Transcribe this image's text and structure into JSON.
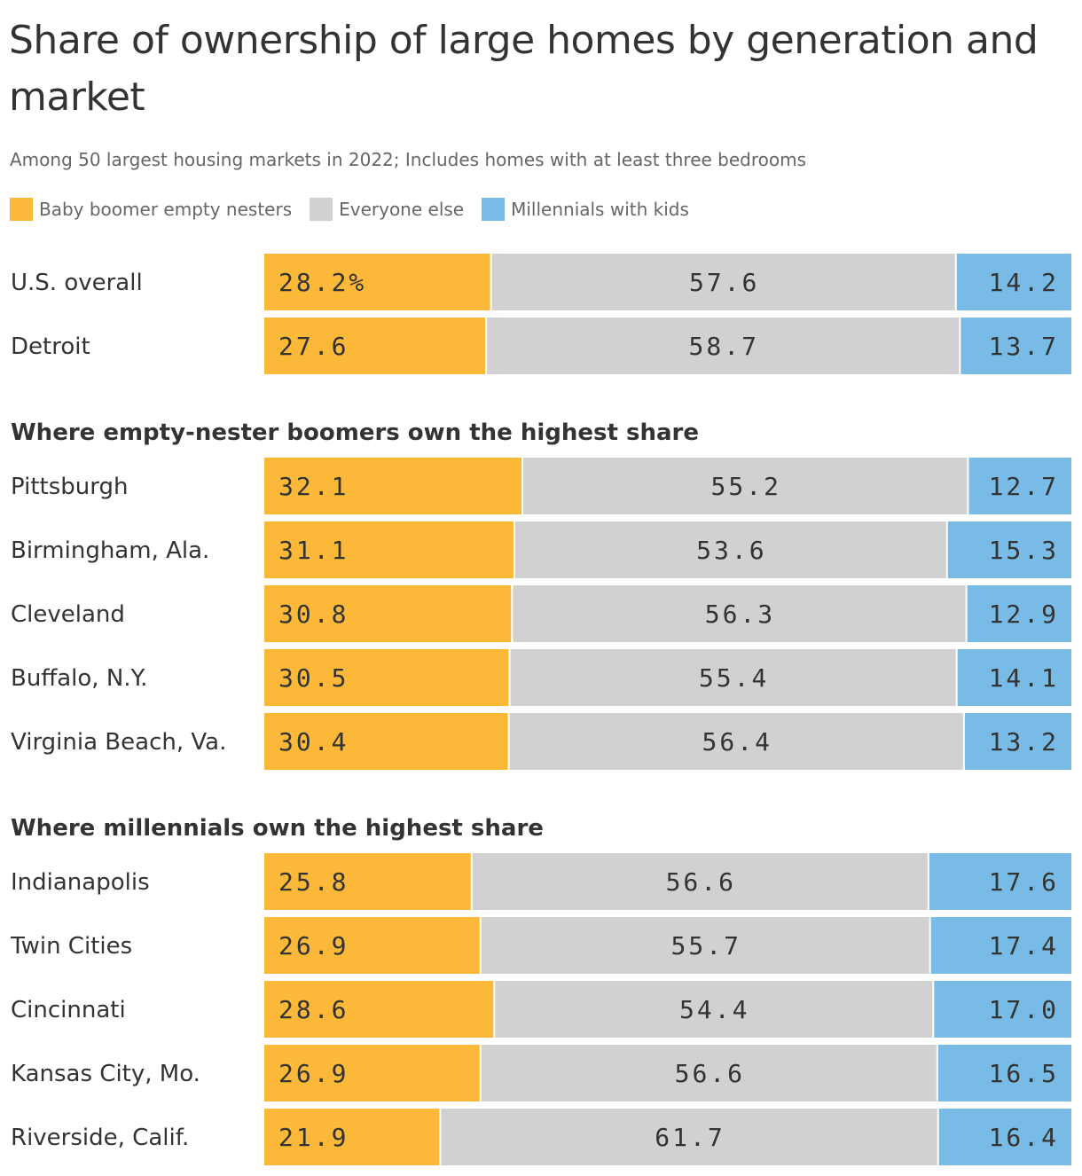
{
  "title": "Share of ownership of large homes by generation and market",
  "subtitle": "Among 50 largest housing markets in 2022; Includes homes with at least three bedrooms",
  "legend": [
    {
      "label": "Baby boomer empty nesters",
      "color": "#fcb939"
    },
    {
      "label": "Everyone else",
      "color": "#d0d1d0"
    },
    {
      "label": "Millennials with kids",
      "color": "#78bbe6"
    }
  ],
  "chart_data": {
    "type": "bar",
    "stacked": true,
    "orientation": "horizontal",
    "value_suffix_first": "%",
    "series_names": [
      "Baby boomer empty nesters",
      "Everyone else",
      "Millennials with kids"
    ],
    "colors": [
      "#fcb939",
      "#d0d1d0",
      "#78bbe6"
    ],
    "xlim": [
      0,
      100
    ],
    "groups": [
      {
        "label": "",
        "rows": [
          {
            "label": "U.S. overall",
            "values": [
              28.2,
              57.6,
              14.2
            ]
          },
          {
            "label": "Detroit",
            "values": [
              27.6,
              58.7,
              13.7
            ]
          }
        ]
      },
      {
        "label": "Where empty-nester boomers own the highest share",
        "rows": [
          {
            "label": "Pittsburgh",
            "values": [
              32.1,
              55.2,
              12.7
            ]
          },
          {
            "label": "Birmingham, Ala.",
            "values": [
              31.1,
              53.6,
              15.3
            ]
          },
          {
            "label": "Cleveland",
            "values": [
              30.8,
              56.3,
              12.9
            ]
          },
          {
            "label": "Buffalo, N.Y.",
            "values": [
              30.5,
              55.4,
              14.1
            ]
          },
          {
            "label": "Virginia Beach, Va.",
            "values": [
              30.4,
              56.4,
              13.2
            ]
          }
        ]
      },
      {
        "label": "Where millennials own the highest share",
        "rows": [
          {
            "label": "Indianapolis",
            "values": [
              25.8,
              56.6,
              17.6
            ]
          },
          {
            "label": "Twin Cities",
            "values": [
              26.9,
              55.7,
              17.4
            ]
          },
          {
            "label": "Cincinnati",
            "values": [
              28.6,
              54.4,
              17.0
            ]
          },
          {
            "label": "Kansas City, Mo.",
            "values": [
              26.9,
              56.6,
              16.5
            ]
          },
          {
            "label": "Riverside, Calif.",
            "values": [
              21.9,
              61.7,
              16.4
            ]
          }
        ]
      }
    ]
  }
}
